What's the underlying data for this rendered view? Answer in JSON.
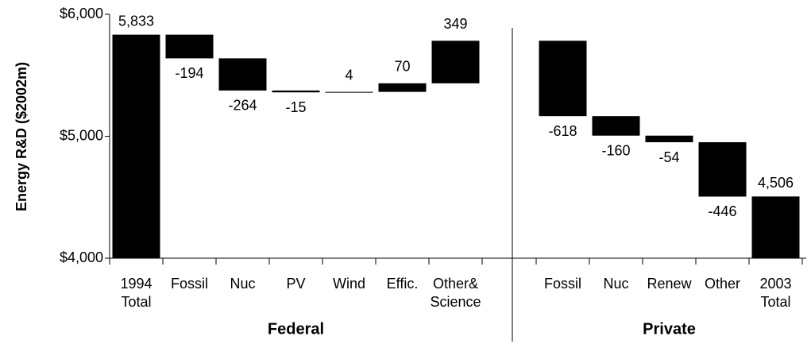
{
  "chart_data": {
    "type": "waterfall",
    "ylabel": "Energy R&D ($2002m)",
    "ylim": [
      4000,
      6000
    ],
    "yticks": [
      {
        "value": 4000,
        "label": "$4,000"
      },
      {
        "value": 5000,
        "label": "$5,000"
      },
      {
        "value": 6000,
        "label": "$6,000"
      }
    ],
    "color": "#000000",
    "groups": [
      {
        "name": "Federal",
        "categories": [
          [
            "1994",
            "Total"
          ],
          [
            "Fossil"
          ],
          [
            "Nuc"
          ],
          [
            "PV"
          ],
          [
            "Wind"
          ],
          [
            "Effic."
          ],
          [
            "Other&",
            "Science"
          ]
        ],
        "measure": [
          "total",
          "relative",
          "relative",
          "relative",
          "relative",
          "relative",
          "relative"
        ],
        "values": [
          5833,
          -194,
          -264,
          -15,
          4,
          70,
          349
        ],
        "value_labels": [
          "5,833",
          null,
          null,
          null,
          null,
          null,
          null
        ]
      },
      {
        "name": "Private",
        "categories": [
          [
            "Fossil"
          ],
          [
            "Nuc"
          ],
          [
            "Renew"
          ],
          [
            "Other"
          ],
          [
            "2003",
            "Total"
          ]
        ],
        "measure": [
          "relative",
          "relative",
          "relative",
          "relative",
          "total"
        ],
        "values": [
          -618,
          -160,
          -54,
          -446,
          4506
        ],
        "value_labels": [
          null,
          null,
          null,
          null,
          "4,506"
        ]
      }
    ]
  }
}
